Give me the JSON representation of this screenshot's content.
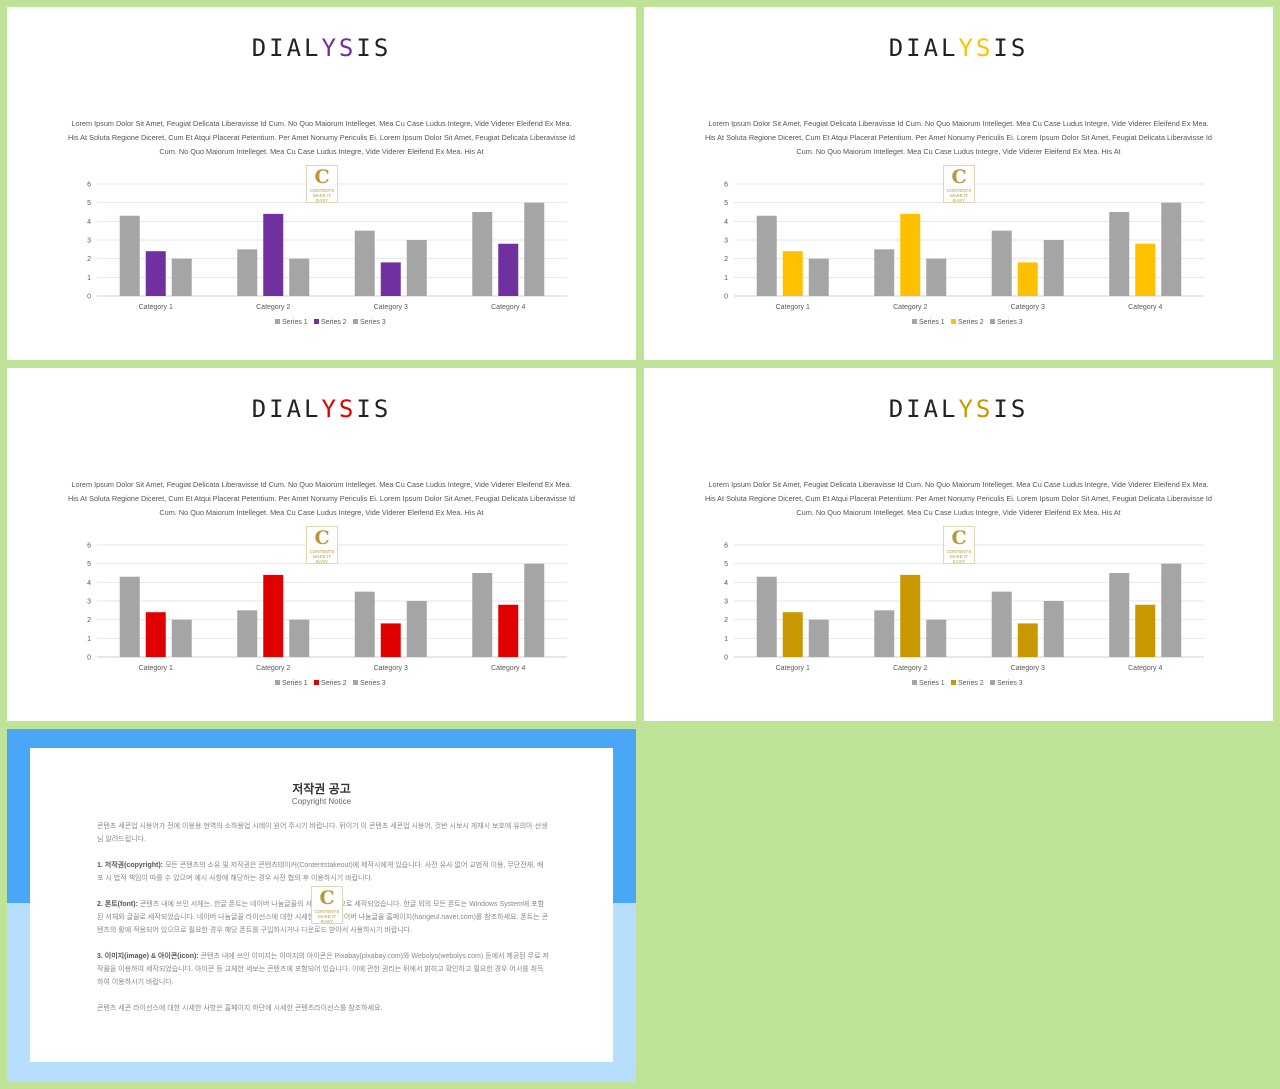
{
  "slides": [
    {
      "title_pre": "DIAL",
      "title_accent": "YS",
      "title_post": "IS",
      "accent": "#7030a0"
    },
    {
      "title_pre": "DIAL",
      "title_accent": "YS",
      "title_post": "IS",
      "accent": "#ffc000"
    },
    {
      "title_pre": "DIAL",
      "title_accent": "YS",
      "title_post": "IS",
      "accent": "#e00000"
    },
    {
      "title_pre": "DIAL",
      "title_accent": "YS",
      "title_post": "IS",
      "accent": "#c99700"
    }
  ],
  "description": "Lorem Ipsum Dolor Sit Amet, Feugiat Delicata Liberavisse Id Cum. No Quo Maiorum Intelleget. Mea Cu Case Ludus Integre, Vide Viderer Eleifend Ex Mea. His At Soluta Regione Diceret, Cum Et Atqui Placerat Petentium. Per Amet Nonumy Periculis Ei. Lorem Ipsum Dolor Sit Amet, Feugiat Delicata Liberavisse Id Cum. No Quo Maiorum Intelleget. Mea Cu Case Ludus Integre, Vide Viderer Eleifend Ex Mea. His At",
  "logo": {
    "letter": "C",
    "text1": "CONTENTS",
    "text2": "MAKE IT EASY"
  },
  "chart_data": {
    "type": "bar",
    "categories": [
      "Category 1",
      "Category 2",
      "Category 3",
      "Category 4"
    ],
    "series": [
      {
        "name": "Series 1",
        "values": [
          4.3,
          2.5,
          3.5,
          4.5
        ]
      },
      {
        "name": "Series 2",
        "values": [
          2.4,
          4.4,
          1.8,
          2.8
        ]
      },
      {
        "name": "Series 3",
        "values": [
          2,
          2,
          3,
          5
        ]
      }
    ],
    "ylim": [
      0,
      6
    ],
    "yticks": [
      "0",
      "1",
      "2",
      "3",
      "4",
      "5",
      "6"
    ],
    "grid": true,
    "legend": "bottom",
    "gray": "#a5a5a5"
  },
  "copyright": {
    "title": "저작권 공고",
    "subtitle": "Copyright Notice",
    "intro": "콘텐츠 세콘업 시용어가 전에 이용용 현역의 소하용업 시례이 원어 주시기 바랍니다. 뒤이기 이 콘텐츠 세콘업 시용어, 것반 시보시 게재시 보호에 유의아 선생님 알려드립니다.",
    "s1_head": "1. 저작권(copyright):",
    "s1_body": " 모든 콘텐츠의 소유 및 저작권은 콘텐츠테이커(Contentstakeout)에 제작시에게 있습니다. 사전 유사 없어 교범적 이용, 무단전재, 배포 시 법적 책임이 따를 수 있으며 예시 사항에 해당하는 경우 사전 협의 후 이용하시기 바랍니다.",
    "s2_head": "2. 폰트(font):",
    "s2_body": " 콘텐츠 내에 쓰인 서체는, 한글 폰트는 네이버 나눔글꼴의 서체를 바탕으로 세작되었습니다. 한글 외의 모든 폰트는 Windows System에 포함된 서체와 글꼴로 세작되었습니다. 네이버 나눔글꼴 라이선스에 대한 시세한 시항은 네이버 나눔글꼴 홈페이지(hangeul.naver.com)를 참조하세요. 폰트는 콘텐츠의 활에 적용되어 있으므로 필요한 경우 해당 폰트를 구입하시거나 다운로드 받아서 사용하시기 바랍니다.",
    "s3_head": "3. 이미지(image) & 아이콘(icon):",
    "s3_body": " 콘텐츠 내에 쓰인 이미지는 이미지의 아이콘은 Pixabay(pixabay.com)와 Webolys(webolys.com) 등에서 제공된 무료 저작물을 이용하여 세작되었습니다. 아이콘 등 교체한 세보는 콘텐츠에 포함되어 있습니다. 이에 관한 권리는 뒤에서 밝히고 확인하고 필요한 경우 어시를 취득하여 이용하시기 바랍니다.",
    "closing": "콘텐츠 세콘 라이선스에 대한 시세한 사항은 홈페이지 하단에 시세한 콘텐츠라이선스를 참조하세요."
  }
}
